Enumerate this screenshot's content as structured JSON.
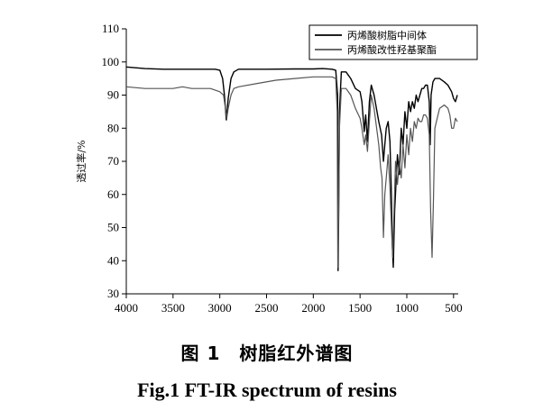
{
  "caption": {
    "cn": "图 1　树脂红外谱图",
    "en": "Fig.1   FT-IR spectrum of resins"
  },
  "chart_data": {
    "type": "line",
    "ylabel": "透过率/%",
    "xlim": [
      4000,
      450
    ],
    "ylim": [
      30,
      110
    ],
    "x_ticks": [
      4000,
      3500,
      3000,
      2500,
      2000,
      1500,
      1000,
      500
    ],
    "y_ticks": [
      30,
      40,
      50,
      60,
      70,
      80,
      90,
      100,
      110
    ],
    "grid": false,
    "legend_position": "top-right",
    "colors": {
      "series1": "#000000",
      "series2": "#555555"
    },
    "series": [
      {
        "name": "丙烯酸树脂中间体",
        "color": "#000000",
        "x": [
          4000,
          3800,
          3600,
          3400,
          3200,
          3100,
          3050,
          3000,
          2970,
          2950,
          2930,
          2910,
          2880,
          2850,
          2800,
          2700,
          2500,
          2200,
          2000,
          1900,
          1800,
          1760,
          1740,
          1735,
          1728,
          1720,
          1700,
          1650,
          1600,
          1550,
          1500,
          1480,
          1455,
          1440,
          1420,
          1400,
          1380,
          1350,
          1300,
          1270,
          1250,
          1235,
          1220,
          1200,
          1180,
          1165,
          1155,
          1145,
          1130,
          1100,
          1080,
          1060,
          1040,
          1020,
          1000,
          980,
          960,
          940,
          920,
          900,
          880,
          860,
          840,
          820,
          800,
          780,
          760,
          750,
          740,
          720,
          700,
          650,
          600,
          560,
          520,
          500,
          480,
          460
        ],
        "y": [
          98.5,
          98,
          97.8,
          97.8,
          97.8,
          97.8,
          97.8,
          97.5,
          95,
          90,
          82.5,
          89,
          95,
          97,
          97.8,
          97.8,
          97.8,
          97.9,
          97.9,
          98,
          97.8,
          97.5,
          90,
          37,
          55,
          85,
          97,
          97,
          95,
          92,
          91,
          88,
          79,
          84,
          76,
          88,
          93,
          90,
          82,
          78,
          70,
          75,
          80,
          82,
          76,
          60,
          45,
          38,
          55,
          72,
          66,
          80,
          75,
          85,
          80,
          88,
          85,
          88,
          86,
          90,
          88,
          90,
          92,
          92,
          93,
          93,
          88,
          75,
          90,
          94,
          95,
          95,
          94,
          93,
          91,
          89,
          88,
          90
        ]
      },
      {
        "name": "丙烯酸改性羟基聚酯",
        "color": "#555555",
        "x": [
          4000,
          3800,
          3600,
          3500,
          3400,
          3300,
          3200,
          3100,
          3000,
          2960,
          2940,
          2925,
          2910,
          2880,
          2850,
          2800,
          2600,
          2400,
          2200,
          2000,
          1900,
          1800,
          1760,
          1745,
          1738,
          1730,
          1720,
          1700,
          1650,
          1600,
          1550,
          1500,
          1480,
          1455,
          1440,
          1420,
          1400,
          1380,
          1350,
          1300,
          1280,
          1265,
          1250,
          1235,
          1220,
          1200,
          1180,
          1160,
          1150,
          1140,
          1120,
          1100,
          1080,
          1060,
          1040,
          1020,
          1000,
          980,
          960,
          940,
          920,
          900,
          880,
          860,
          840,
          820,
          800,
          780,
          760,
          745,
          730,
          715,
          700,
          650,
          600,
          560,
          540,
          520,
          500,
          480,
          460
        ],
        "y": [
          92.5,
          92,
          92,
          92,
          92.5,
          92,
          92,
          92,
          91,
          90,
          86,
          83,
          86,
          90,
          92,
          92.5,
          93.5,
          94.5,
          95,
          95.5,
          95.5,
          95.5,
          95,
          85,
          38,
          52,
          80,
          92,
          92,
          90,
          86,
          83,
          80,
          75,
          78,
          73,
          82,
          90,
          86,
          75,
          68,
          65,
          47,
          60,
          65,
          72,
          62,
          47,
          41,
          52,
          70,
          63,
          70,
          65,
          75,
          68,
          78,
          72,
          80,
          76,
          82,
          80,
          83,
          82,
          82,
          84,
          84,
          83,
          78,
          55,
          41,
          58,
          80,
          86,
          87,
          86,
          84,
          80,
          80,
          83,
          82
        ]
      }
    ]
  }
}
